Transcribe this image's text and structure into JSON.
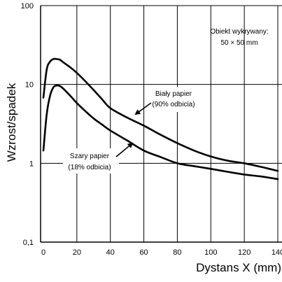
{
  "chart_data": {
    "type": "line",
    "xlabel": "Dystans X (mm)",
    "ylabel": "Wzrost/spadek",
    "xlim": [
      0,
      140
    ],
    "ylim": [
      0.1,
      100
    ],
    "y_scale": "log",
    "grid": true,
    "x_ticks": [
      0,
      20,
      40,
      60,
      80,
      100,
      120,
      140
    ],
    "x_tick_labels": [
      "0",
      "20",
      "40",
      "60",
      "80",
      "100",
      "120",
      "140"
    ],
    "y_ticks": [
      0.1,
      1,
      10,
      100
    ],
    "y_tick_labels": [
      "0,1",
      "1",
      "10",
      "100"
    ],
    "series": [
      {
        "name": "Biały papier (90% odbicia)",
        "x": [
          0,
          2,
          4,
          6,
          8,
          10,
          12,
          16,
          20,
          25,
          30,
          35,
          40,
          50,
          60,
          70,
          80,
          90,
          100,
          110,
          120,
          130,
          140
        ],
        "y": [
          6.8,
          15.5,
          19.5,
          21,
          21,
          20.5,
          19,
          16.5,
          14,
          11,
          8.5,
          6.5,
          5.0,
          3.8,
          3.0,
          2.3,
          1.8,
          1.45,
          1.22,
          1.08,
          1.0,
          0.9,
          0.8
        ]
      },
      {
        "name": "Szary papier (18% odbicia)",
        "x": [
          0,
          2,
          4,
          6,
          8,
          10,
          12,
          16,
          20,
          25,
          30,
          35,
          40,
          50,
          60,
          70,
          80,
          90,
          100,
          110,
          120,
          130,
          140
        ],
        "y": [
          1.45,
          4.2,
          7.2,
          9.2,
          9.7,
          9.5,
          8.8,
          7.2,
          5.8,
          4.6,
          3.7,
          3.1,
          2.6,
          1.95,
          1.45,
          1.2,
          1.0,
          0.92,
          0.85,
          0.78,
          0.72,
          0.68,
          0.63
        ]
      }
    ],
    "annotations": [
      {
        "id": "object",
        "lines": [
          "Obiekt wykrywany:",
          "50 × 50 mm"
        ]
      },
      {
        "id": "white",
        "lines": [
          "Biały papier",
          "(90% odbicia)"
        ]
      },
      {
        "id": "gray",
        "lines": [
          "Szary papier",
          "(18% odbicia)"
        ]
      }
    ]
  }
}
